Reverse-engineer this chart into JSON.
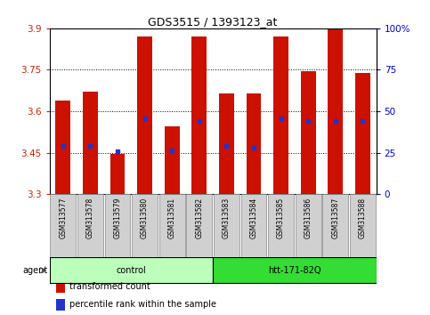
{
  "title": "GDS3515 / 1393123_at",
  "samples": [
    "GSM313577",
    "GSM313578",
    "GSM313579",
    "GSM313580",
    "GSM313581",
    "GSM313582",
    "GSM313583",
    "GSM313584",
    "GSM313585",
    "GSM313586",
    "GSM313587",
    "GSM313588"
  ],
  "bar_tops": [
    3.64,
    3.67,
    3.445,
    3.87,
    3.545,
    3.87,
    3.665,
    3.665,
    3.87,
    3.745,
    3.9,
    3.74
  ],
  "blue_vals": [
    3.475,
    3.473,
    3.455,
    3.575,
    3.458,
    3.565,
    3.475,
    3.468,
    3.573,
    3.565,
    3.565,
    3.563
  ],
  "ymin": 3.3,
  "ymax": 3.9,
  "yticks": [
    3.3,
    3.45,
    3.6,
    3.75,
    3.9
  ],
  "y2ticks_right": [
    0,
    25,
    50,
    75,
    100
  ],
  "bar_color": "#cc1100",
  "blue_color": "#2233cc",
  "bar_width": 0.55,
  "groups": [
    {
      "label": "control",
      "start": 0,
      "end": 6,
      "color": "#bbffbb"
    },
    {
      "label": "htt-171-82Q",
      "start": 6,
      "end": 12,
      "color": "#33dd33"
    }
  ],
  "agent_label": "agent",
  "legend_items": [
    {
      "color": "#cc1100",
      "label": "transformed count"
    },
    {
      "color": "#2233cc",
      "label": "percentile rank within the sample"
    }
  ],
  "sample_box_color": "#d0d0d0",
  "sample_box_edge": "#888888",
  "plot_bg": "white",
  "fig_bg": "white"
}
